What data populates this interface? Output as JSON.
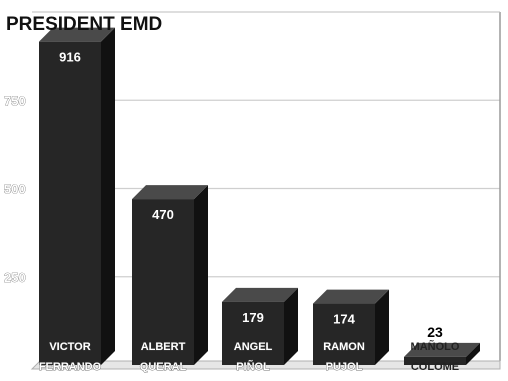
{
  "chart_data": {
    "type": "bar",
    "title": "PRESIDENT EMD",
    "categories": [
      [
        "VICTOR",
        "FERRANDO"
      ],
      [
        "ALBERT",
        "QUERAL"
      ],
      [
        "ANGEL",
        "PIÑOL"
      ],
      [
        "RAMON",
        "PUJOL"
      ],
      [
        "MAÑOLO",
        "COLOME"
      ]
    ],
    "values": [
      916,
      470,
      179,
      174,
      23
    ],
    "value_labels": [
      "916",
      "470",
      "179",
      "174",
      "23"
    ],
    "yticks": [
      250,
      500,
      750
    ],
    "ytick_labels": [
      "250",
      "500",
      "750"
    ],
    "ylim": [
      0,
      1000
    ],
    "grid": true,
    "legend": "none",
    "colors": {
      "bar_front": "#262626",
      "bar_side": "#111111",
      "bar_top": "#4a4a4a",
      "grid": "#cfcfcf",
      "plot_bg": "#ffffff"
    }
  }
}
